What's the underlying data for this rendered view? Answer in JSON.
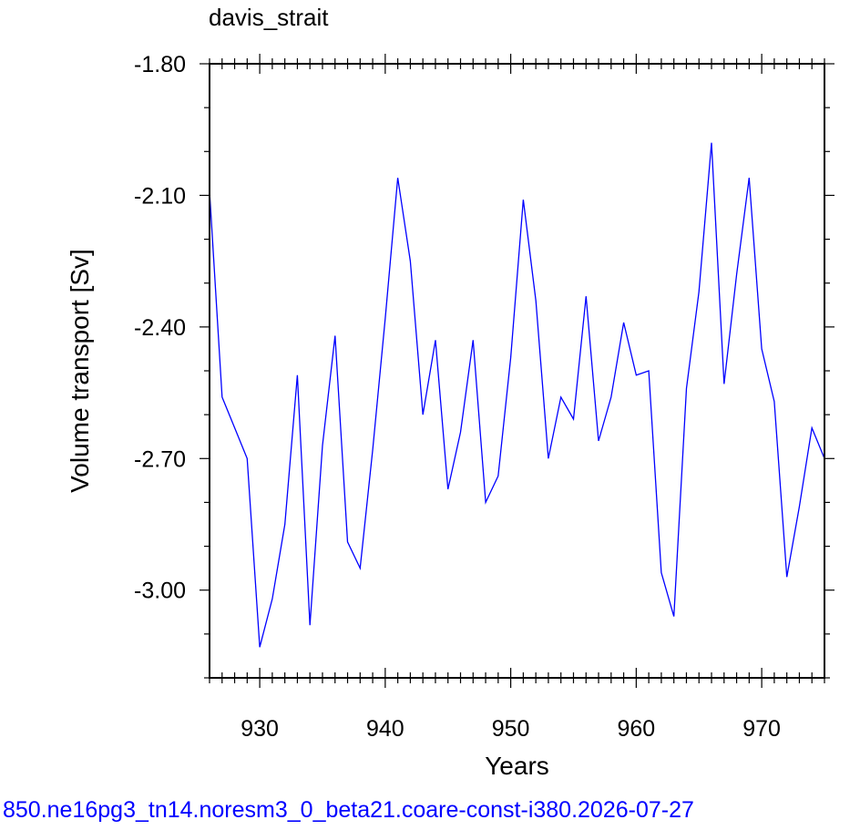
{
  "chart_data": {
    "type": "line",
    "title": "davis_strait",
    "xlabel": "Years",
    "ylabel": "Volume transport [Sv]",
    "xlim": [
      926,
      975
    ],
    "ylim": [
      -3.2,
      -1.8
    ],
    "xticks": [
      930,
      940,
      950,
      960,
      970
    ],
    "yticks": [
      -1.8,
      -2.1,
      -2.4,
      -2.7,
      -3.0
    ],
    "ytick_labels": [
      "-1.80",
      "-2.10",
      "-2.40",
      "-2.70",
      "-3.00"
    ],
    "grid": false,
    "series": [
      {
        "color": "#0000ff",
        "x": [
          926,
          927,
          928,
          929,
          930,
          931,
          932,
          933,
          934,
          935,
          936,
          937,
          938,
          939,
          940,
          941,
          942,
          943,
          944,
          945,
          946,
          947,
          948,
          949,
          950,
          951,
          952,
          953,
          954,
          955,
          956,
          957,
          958,
          959,
          960,
          961,
          962,
          963,
          964,
          965,
          966,
          967,
          968,
          969,
          970,
          971,
          972,
          973,
          974,
          975
        ],
        "y": [
          -2.09,
          -2.56,
          -2.63,
          -2.7,
          -3.13,
          -3.02,
          -2.85,
          -2.51,
          -3.08,
          -2.67,
          -2.42,
          -2.89,
          -2.95,
          -2.68,
          -2.38,
          -2.06,
          -2.25,
          -2.6,
          -2.43,
          -2.77,
          -2.64,
          -2.43,
          -2.8,
          -2.74,
          -2.47,
          -2.11,
          -2.34,
          -2.7,
          -2.56,
          -2.61,
          -2.33,
          -2.66,
          -2.56,
          -2.39,
          -2.51,
          -2.5,
          -2.96,
          -3.06,
          -2.54,
          -2.32,
          -1.98,
          -2.53,
          -2.28,
          -2.06,
          -2.45,
          -2.57,
          -2.97,
          -2.81,
          -2.63,
          -2.7
        ]
      }
    ]
  },
  "footer_text": "850.ne16pg3_tn14.noresm3_0_beta21.coare-const-i380.2026-07-27"
}
